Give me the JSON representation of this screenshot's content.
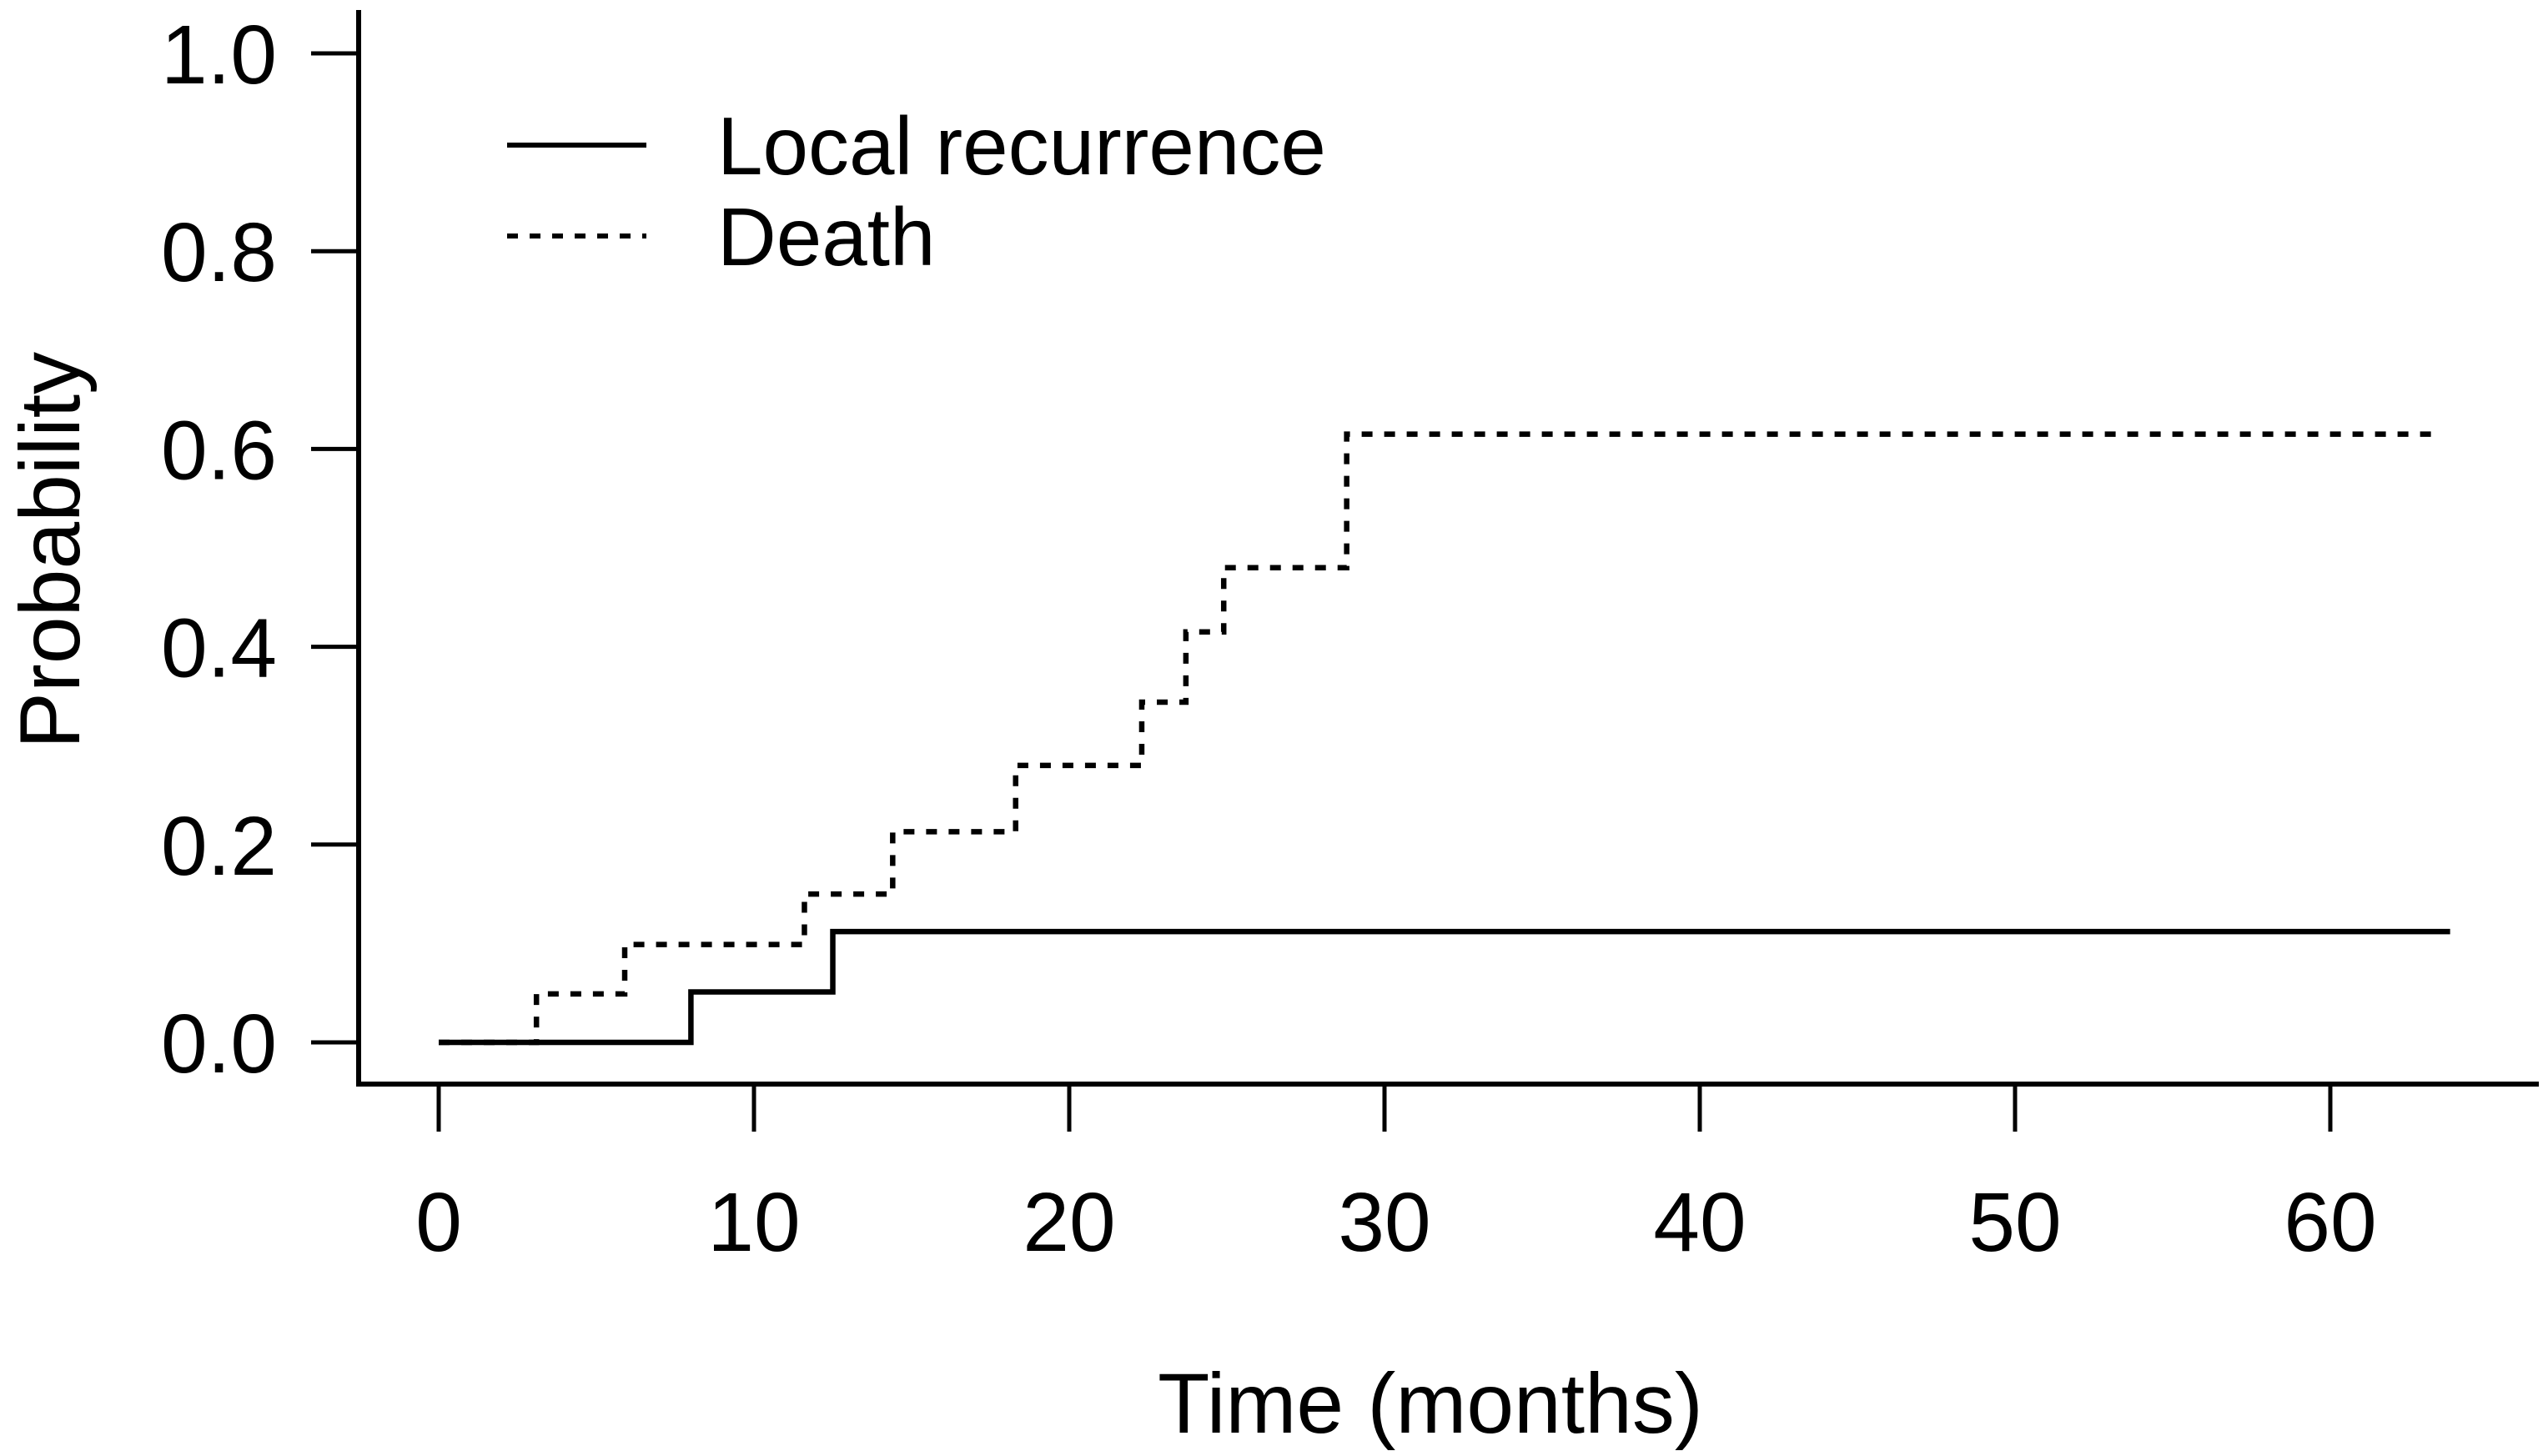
{
  "figure": {
    "background": "#ffffff",
    "ink_color": "#000000"
  },
  "chart_data": {
    "type": "line",
    "subtype": "step-function-survival",
    "title": "",
    "xlabel": "Time (months)",
    "ylabel": "Probability",
    "xlim": [
      0,
      66.6
    ],
    "ylim": [
      0,
      1.0
    ],
    "xticks": [
      0,
      10,
      20,
      30,
      40,
      50,
      60
    ],
    "yticks": [
      "0.0",
      "0.2",
      "0.4",
      "0.6",
      "0.8",
      "1.0"
    ],
    "grid": false,
    "legend": {
      "position": "top-left-inside",
      "entries": [
        {
          "label": "Local recurrence",
          "line_style": "solid"
        },
        {
          "label": "Death",
          "line_style": "dashed"
        }
      ]
    },
    "series": [
      {
        "name": "Local recurrence",
        "line_style": "solid",
        "step_points": [
          [
            0,
            0.0
          ],
          [
            8.0,
            0.051
          ],
          [
            12.5,
            0.112
          ],
          [
            63.8,
            0.112
          ]
        ]
      },
      {
        "name": "Death",
        "line_style": "dashed",
        "step_points": [
          [
            0,
            0.0
          ],
          [
            3.1,
            0.049
          ],
          [
            5.9,
            0.099
          ],
          [
            11.6,
            0.15
          ],
          [
            14.4,
            0.213
          ],
          [
            18.3,
            0.28
          ],
          [
            22.3,
            0.344
          ],
          [
            23.7,
            0.415
          ],
          [
            24.9,
            0.48
          ],
          [
            28.8,
            0.615
          ],
          [
            63.5,
            0.615
          ]
        ]
      }
    ]
  }
}
